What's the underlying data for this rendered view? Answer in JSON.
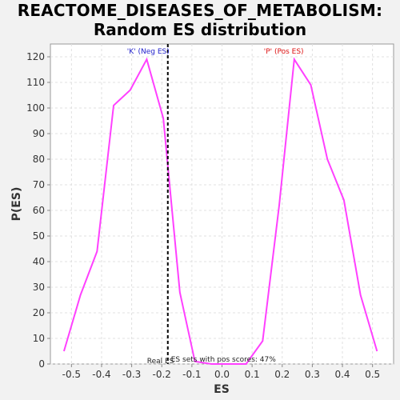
{
  "title_line1": "REACTOME_DISEASES_OF_METABOLISM:",
  "title_line2": "Random ES distribution",
  "colors": {
    "curve": "#ff40ff",
    "neg": "#2222cc",
    "pos": "#dd1111",
    "grid": "#e0e0e0",
    "axis": "#888888",
    "realline": "#000000"
  },
  "chart_data": {
    "type": "line",
    "title": "REACTOME_DISEASES_OF_METABOLISM: Random ES distribution",
    "xlabel": "ES",
    "ylabel": "P(ES)",
    "xlim": [
      -0.57,
      0.57
    ],
    "ylim": [
      0,
      125
    ],
    "xticks": [
      "-0.5",
      "-0.4",
      "-0.3",
      "-0.2",
      "-0.1",
      "0.0",
      "0.1",
      "0.2",
      "0.3",
      "0.4",
      "0.5"
    ],
    "yticks": [
      "0",
      "10",
      "20",
      "30",
      "40",
      "50",
      "60",
      "70",
      "80",
      "90",
      "100",
      "110",
      "120"
    ],
    "grid": true,
    "series": [
      {
        "x": [
          -0.525,
          -0.47,
          -0.415,
          -0.36,
          -0.305,
          -0.25,
          -0.195,
          -0.14,
          -0.09,
          -0.035,
          0.02,
          0.08,
          0.135,
          0.19,
          0.24,
          0.295,
          0.35,
          0.405,
          0.46,
          0.515
        ],
        "y": [
          5,
          27,
          44,
          101,
          107,
          119,
          96,
          28,
          1,
          0,
          0,
          0,
          9,
          62,
          119,
          109,
          80,
          64,
          27,
          5
        ]
      }
    ],
    "real_es": -0.18,
    "annotations": {
      "neg_label": "'K' (Neg ES)",
      "pos_label": "'P' (Pos ES)",
      "real_es_label": "Real ES",
      "pos_scores_label": "ES sets with pos scores: 47%"
    }
  }
}
